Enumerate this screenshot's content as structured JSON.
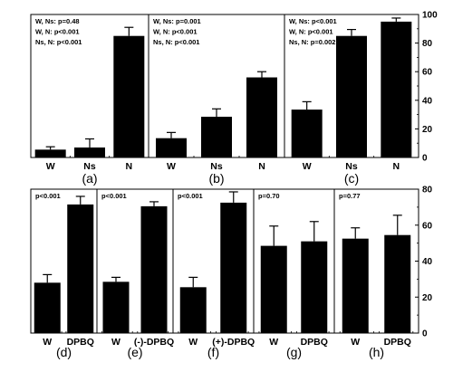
{
  "chart_data": [
    {
      "type": "bar",
      "panel_label": "(a)",
      "categories": [
        "W",
        "Ns",
        "N"
      ],
      "values": [
        5.5,
        7,
        85
      ],
      "errors": [
        2,
        6,
        6
      ],
      "annotations": [
        "W, Ns: p=0.48",
        "W, N: p<0.001",
        "Ns, N: p<0.001"
      ],
      "ylim": [
        0,
        100
      ],
      "yticks": [
        "0",
        "20",
        "40",
        "60",
        "80",
        "100"
      ]
    },
    {
      "type": "bar",
      "panel_label": "(b)",
      "categories": [
        "W",
        "Ns",
        "N"
      ],
      "values": [
        13.5,
        28.5,
        56
      ],
      "errors": [
        4,
        5.5,
        4
      ],
      "annotations": [
        "W, Ns: p=0.001",
        "W, N: p<0.001",
        "Ns, N: p<0.001"
      ],
      "ylim": [
        0,
        100
      ],
      "yticks": [
        "0",
        "20",
        "40",
        "60",
        "80",
        "100"
      ]
    },
    {
      "type": "bar",
      "panel_label": "(c)",
      "categories": [
        "W",
        "Ns",
        "N"
      ],
      "values": [
        33.5,
        85,
        95
      ],
      "errors": [
        5.5,
        4.5,
        2.5
      ],
      "annotations": [
        "W, Ns: p<0.001",
        "W, N: p<0.001",
        "Ns, N: p=0.002"
      ],
      "ylim": [
        0,
        100
      ],
      "yticks": [
        "0",
        "20",
        "40",
        "60",
        "80",
        "100"
      ]
    },
    {
      "type": "bar",
      "panel_label": "(d)",
      "categories": [
        "W",
        "DPBQ"
      ],
      "values": [
        28,
        71.5
      ],
      "errors": [
        4.5,
        4.5
      ],
      "annotations": [
        "p<0.001"
      ],
      "ylim": [
        0,
        80
      ],
      "yticks": [
        "0",
        "20",
        "40",
        "60",
        "80"
      ]
    },
    {
      "type": "bar",
      "panel_label": "(e)",
      "categories": [
        "W",
        "(-)-DPBQ"
      ],
      "values": [
        28.5,
        70.5
      ],
      "errors": [
        2.5,
        2.5
      ],
      "annotations": [
        "p<0.001"
      ],
      "ylim": [
        0,
        80
      ],
      "yticks": [
        "0",
        "20",
        "40",
        "60",
        "80"
      ]
    },
    {
      "type": "bar",
      "panel_label": "(f)",
      "categories": [
        "W",
        "(+)-DPBQ"
      ],
      "values": [
        25.5,
        72.5
      ],
      "errors": [
        5.5,
        6
      ],
      "annotations": [
        "p<0.001"
      ],
      "ylim": [
        0,
        80
      ],
      "yticks": [
        "0",
        "20",
        "40",
        "60",
        "80"
      ]
    },
    {
      "type": "bar",
      "panel_label": "(g)",
      "categories": [
        "W",
        "DPBQ"
      ],
      "values": [
        48.5,
        51
      ],
      "errors": [
        11,
        11
      ],
      "annotations": [
        "p=0.70"
      ],
      "ylim": [
        0,
        80
      ],
      "yticks": [
        "0",
        "20",
        "40",
        "60",
        "80"
      ]
    },
    {
      "type": "bar",
      "panel_label": "(h)",
      "categories": [
        "W",
        "DPBQ"
      ],
      "values": [
        52.5,
        54.5
      ],
      "errors": [
        6,
        11
      ],
      "annotations": [
        "p=0.77"
      ],
      "ylim": [
        0,
        80
      ],
      "yticks": [
        "0",
        "20",
        "40",
        "60",
        "80"
      ]
    }
  ]
}
